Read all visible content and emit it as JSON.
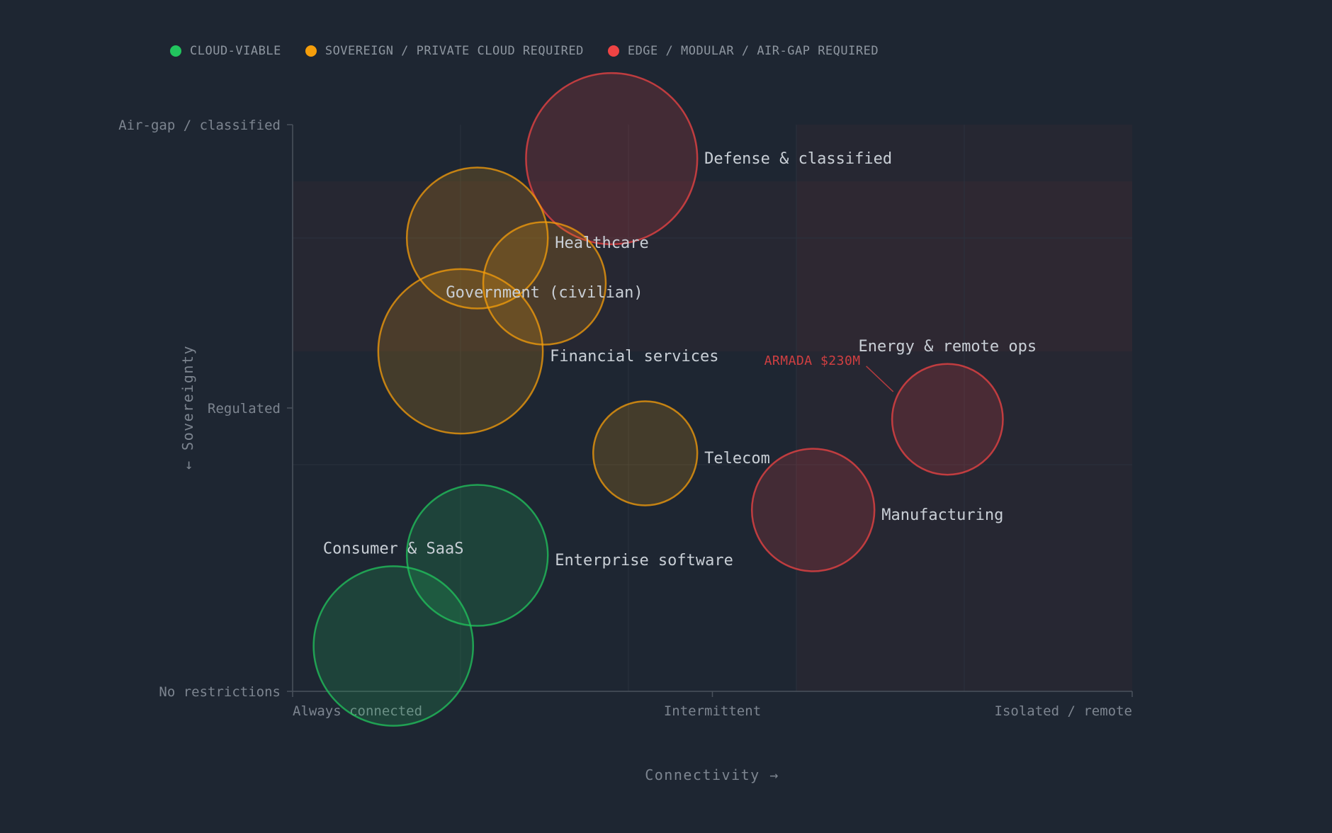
{
  "legend": [
    {
      "label": "CLOUD-VIABLE",
      "color": "#22c55e"
    },
    {
      "label": "SOVEREIGN / PRIVATE CLOUD REQUIRED",
      "color": "#f59e0b"
    },
    {
      "label": "EDGE / MODULAR / AIR-GAP REQUIRED",
      "color": "#ef4444"
    }
  ],
  "chart_data": {
    "type": "scatter",
    "subtype": "bubble",
    "xlabel": "Connectivity →",
    "ylabel": "← Sovereignty",
    "x_ticks": [
      {
        "value": 0,
        "label": "Always connected"
      },
      {
        "value": 0.5,
        "label": "Intermittent"
      },
      {
        "value": 1,
        "label": "Isolated / remote"
      }
    ],
    "y_ticks": [
      {
        "value": 0,
        "label": "No restrictions"
      },
      {
        "value": 0.5,
        "label": "Regulated"
      },
      {
        "value": 1,
        "label": "Air-gap / classified"
      }
    ],
    "xlim": [
      0,
      1
    ],
    "ylim": [
      0,
      1
    ],
    "grid": true,
    "legend_position": "top-left",
    "shaded_zones": [
      {
        "x": [
          0,
          1
        ],
        "y": [
          0.6,
          0.9
        ],
        "color": "#ef4444"
      },
      {
        "x": [
          0.6,
          1
        ],
        "y": [
          0,
          1
        ],
        "color": "#ef4444"
      }
    ],
    "points": [
      {
        "label": "Defense & classified",
        "x": 0.38,
        "y": 0.94,
        "r": 0.102,
        "color": "#ef4444"
      },
      {
        "label": "Healthcare",
        "x": 0.22,
        "y": 0.8,
        "r": 0.084,
        "color": "#f59e0b"
      },
      {
        "label": "Government (civilian)",
        "x": 0.3,
        "y": 0.72,
        "r": 0.073,
        "color": "#f59e0b"
      },
      {
        "label": "Financial services",
        "x": 0.2,
        "y": 0.6,
        "r": 0.098,
        "color": "#f59e0b"
      },
      {
        "label": "Telecom",
        "x": 0.42,
        "y": 0.42,
        "r": 0.062,
        "color": "#f59e0b"
      },
      {
        "label": "Energy & remote ops",
        "x": 0.78,
        "y": 0.48,
        "r": 0.066,
        "color": "#ef4444"
      },
      {
        "label": "Manufacturing",
        "x": 0.62,
        "y": 0.32,
        "r": 0.073,
        "color": "#ef4444"
      },
      {
        "label": "Enterprise software",
        "x": 0.22,
        "y": 0.24,
        "r": 0.084,
        "color": "#22c55e"
      },
      {
        "label": "Consumer & SaaS",
        "x": 0.12,
        "y": 0.08,
        "r": 0.095,
        "color": "#22c55e"
      }
    ],
    "annotations": [
      {
        "text": "ARMADA $230M",
        "target": "Energy & remote ops",
        "color": "#ef4444"
      }
    ]
  }
}
